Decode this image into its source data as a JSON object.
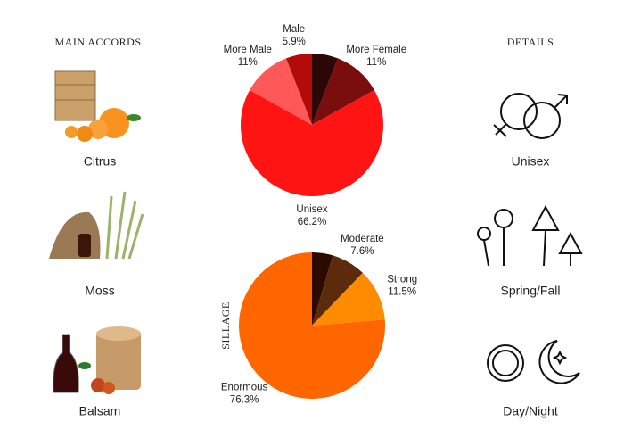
{
  "main_accords": {
    "heading": "MAIN ACCORDS",
    "items": [
      "Citrus",
      "Moss",
      "Balsam"
    ]
  },
  "details": {
    "heading": "DETAILS",
    "items": [
      "Unisex",
      "Spring/Fall",
      "Day/Night"
    ]
  },
  "chart_data": [
    {
      "type": "pie",
      "categories": [
        null,
        "More Female",
        "Unisex",
        "More Male",
        "Male"
      ],
      "values": [
        5.9,
        11,
        66.2,
        11,
        5.9
      ],
      "value_labels": [
        null,
        "11%",
        "66.2%",
        "11%",
        "5.9%"
      ],
      "colors": [
        "#2b0707",
        "#7a0d0d",
        "#ff1414",
        "#ff5858",
        "#b30a0a"
      ]
    },
    {
      "type": "pie",
      "title": "SILLAGE",
      "categories": [
        null,
        "Moderate",
        "Strong",
        "Enormous"
      ],
      "values": [
        4.6,
        7.6,
        11.5,
        76.3
      ],
      "value_labels": [
        null,
        "7.6%",
        "11.5%",
        "76.3%"
      ],
      "colors": [
        "#2b0a00",
        "#5c2b0b",
        "#ff8c00",
        "#ff6600"
      ]
    }
  ]
}
